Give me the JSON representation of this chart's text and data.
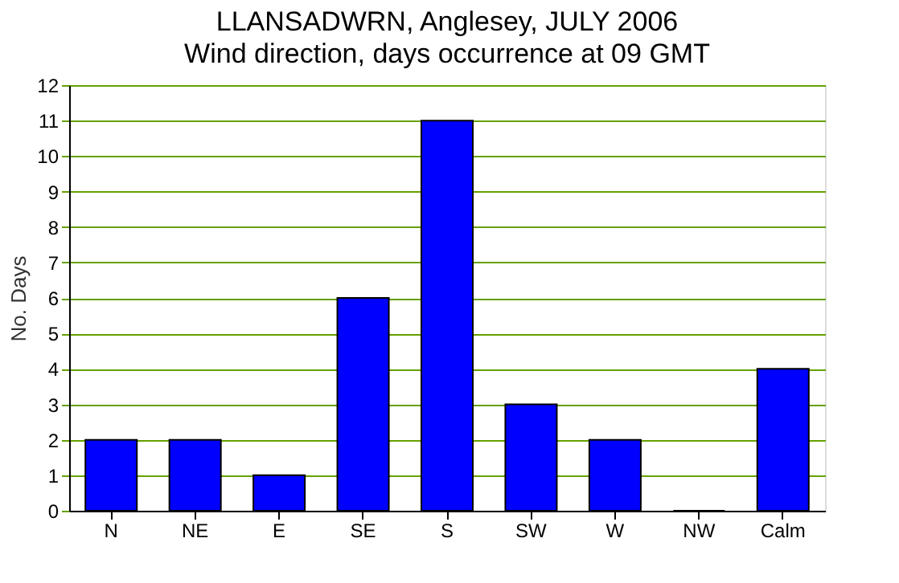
{
  "chart_data": {
    "type": "bar",
    "title": "LLANSADWRN, Anglesey, JULY 2006",
    "subtitle": "Wind direction, days occurrence at 09 GMT",
    "ylabel": "No. Days",
    "categories": [
      "N",
      "NE",
      "E",
      "SE",
      "S",
      "SW",
      "W",
      "NW",
      "Calm"
    ],
    "values": [
      2,
      2,
      1,
      6,
      11,
      3,
      2,
      0,
      4
    ],
    "color": "#0000ff",
    "ylim": [
      0,
      12
    ],
    "yticks": [
      0,
      1,
      2,
      3,
      4,
      5,
      6,
      7,
      8,
      9,
      10,
      11,
      12
    ],
    "grid": "y"
  }
}
